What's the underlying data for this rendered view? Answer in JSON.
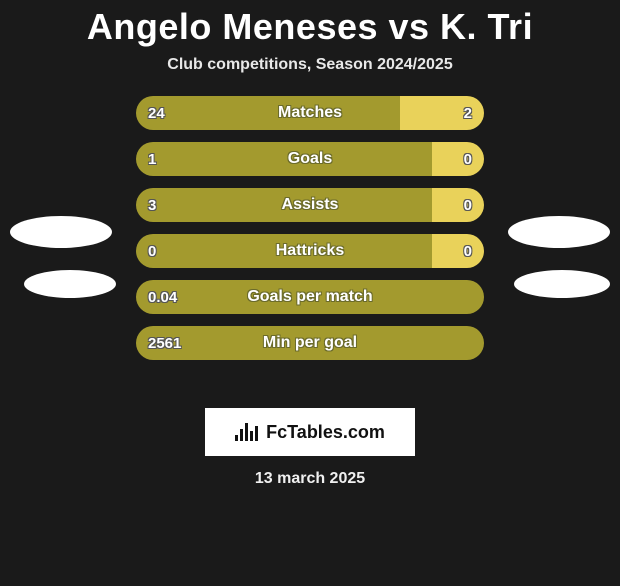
{
  "title": "Angelo Meneses vs K. Tri",
  "subtitle": "Club competitions, Season 2024/2025",
  "colors": {
    "left": "#a39a2e",
    "right": "#e9d25a",
    "background": "#1a1a1a",
    "text": "#ffffff"
  },
  "stats": [
    {
      "label": "Matches",
      "left_val": "24",
      "right_val": "2",
      "left_pct": 76,
      "right_pct": 24
    },
    {
      "label": "Goals",
      "left_val": "1",
      "right_val": "0",
      "left_pct": 85,
      "right_pct": 15
    },
    {
      "label": "Assists",
      "left_val": "3",
      "right_val": "0",
      "left_pct": 85,
      "right_pct": 15
    },
    {
      "label": "Hattricks",
      "left_val": "0",
      "right_val": "0",
      "left_pct": 85,
      "right_pct": 15
    },
    {
      "label": "Goals per match",
      "left_val": "0.04",
      "right_val": "",
      "left_pct": 100,
      "right_pct": 0
    },
    {
      "label": "Min per goal",
      "left_val": "2561",
      "right_val": "",
      "left_pct": 100,
      "right_pct": 0
    }
  ],
  "footer_brand": "FcTables.com",
  "footer_date": "13 march 2025"
}
